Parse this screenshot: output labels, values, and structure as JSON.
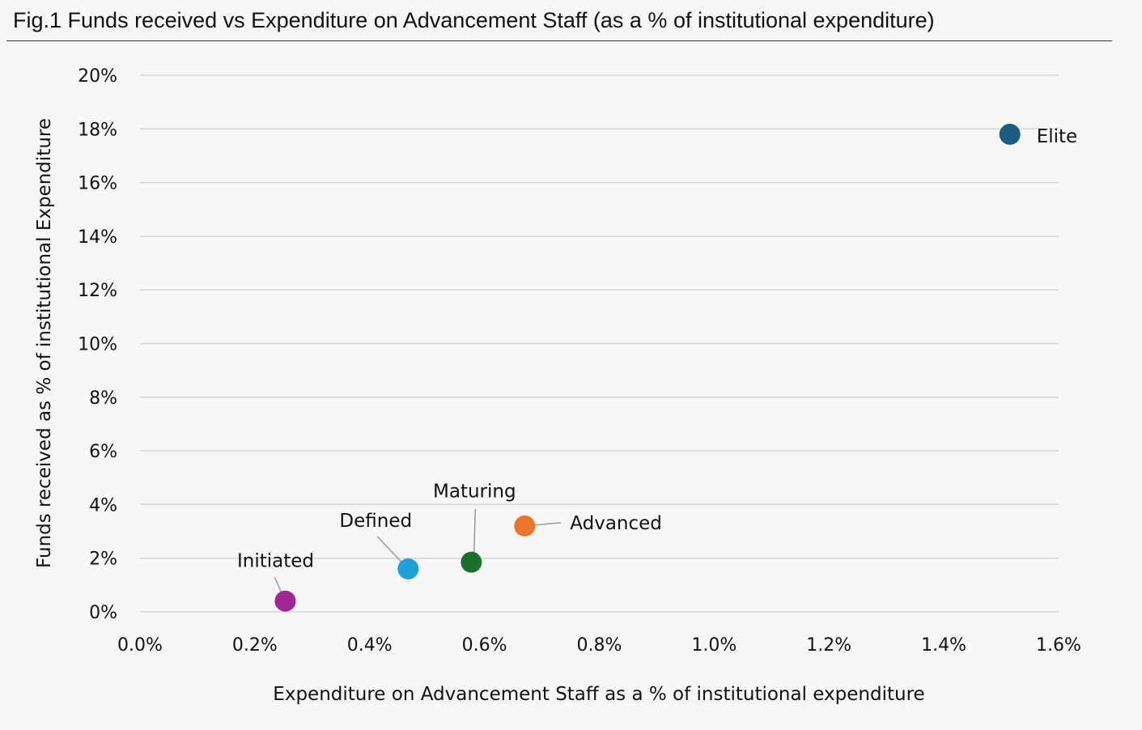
{
  "figure_title": "Fig.1 Funds received vs Expenditure on Advancement Staff (as a % of institutional expenditure)",
  "chart_data": {
    "type": "scatter",
    "title": "Fig.1 Funds received vs Expenditure on Advancement Staff (as a % of institutional expenditure)",
    "xlabel": "Expenditure on Advancement Staff as a % of institutional expenditure",
    "ylabel": "Funds received as % of institutional Expenditure",
    "xlim": [
      0,
      1.6
    ],
    "ylim": [
      0,
      20
    ],
    "x_ticks": [
      "0.0%",
      "0.2%",
      "0.4%",
      "0.6%",
      "0.8%",
      "1.0%",
      "1.2%",
      "1.4%",
      "1.6%"
    ],
    "y_ticks": [
      "0%",
      "2%",
      "4%",
      "6%",
      "8%",
      "10%",
      "12%",
      "14%",
      "16%",
      "18%",
      "20%"
    ],
    "grid": "horizontal",
    "points": [
      {
        "label": "Initiated",
        "x": 0.253,
        "y": 0.4,
        "color": "#a0278f"
      },
      {
        "label": "Defined",
        "x": 0.467,
        "y": 1.6,
        "color": "#1ea0d8"
      },
      {
        "label": "Maturing",
        "x": 0.577,
        "y": 1.85,
        "color": "#1d6e2a"
      },
      {
        "label": "Advanced",
        "x": 0.67,
        "y": 3.2,
        "color": "#e8762c"
      },
      {
        "label": "Elite",
        "x": 1.515,
        "y": 17.8,
        "color": "#1b5e80"
      }
    ]
  }
}
